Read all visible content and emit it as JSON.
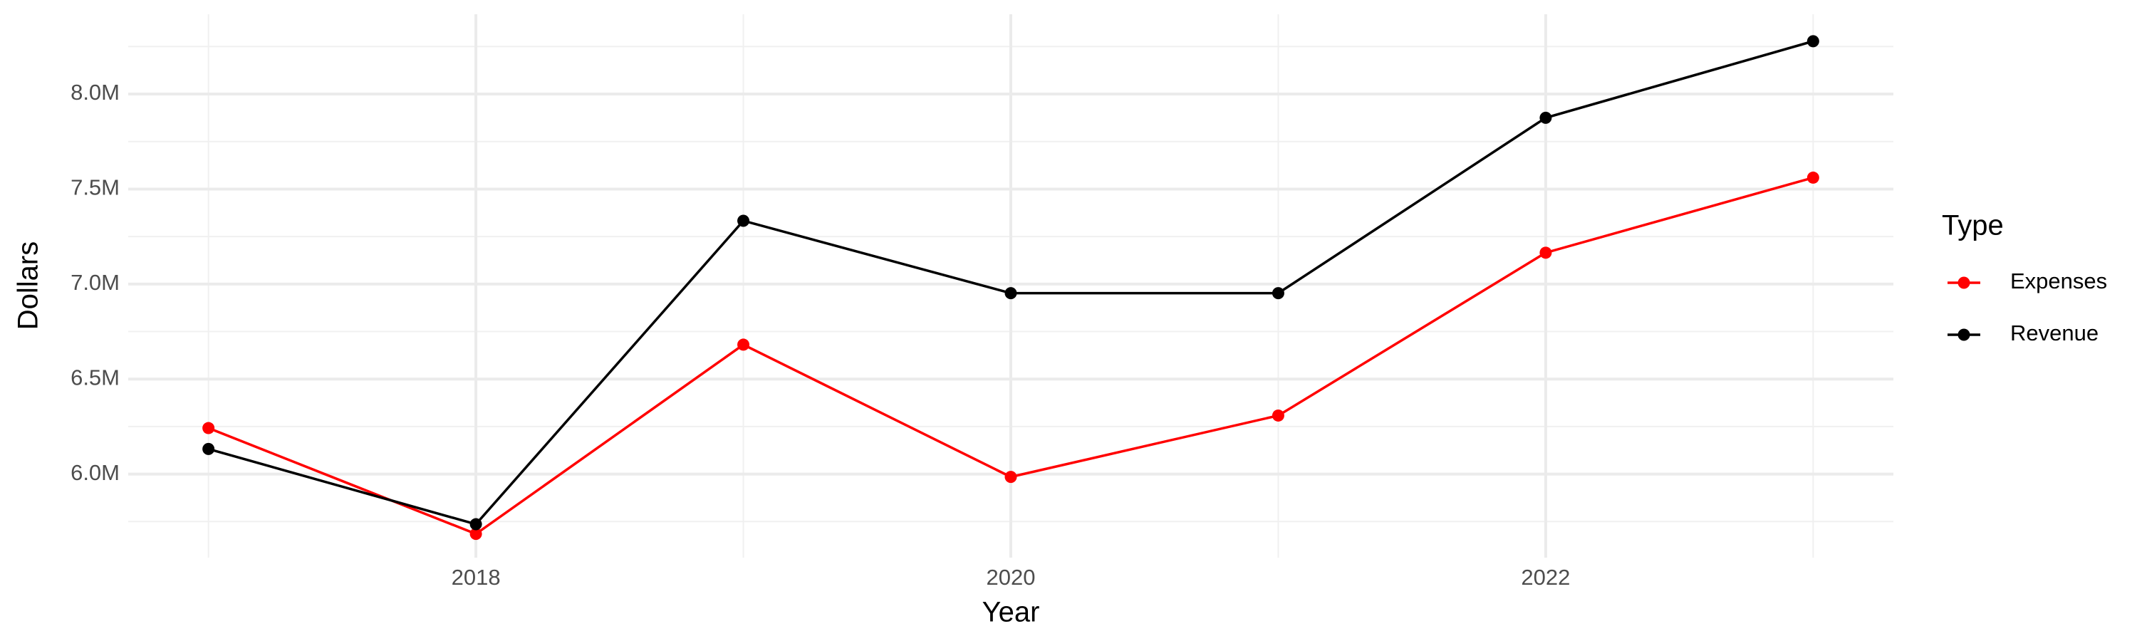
{
  "chart_data": {
    "type": "line",
    "x_label": "Year",
    "y_label": "Dollars",
    "legend_title": "Type",
    "legend_position": "right",
    "grid": true,
    "x": [
      2017,
      2018,
      2019,
      2020,
      2021,
      2022,
      2023
    ],
    "xlim": [
      2016.7,
      2023.3
    ],
    "xticks": [
      2018,
      2020,
      2022
    ],
    "ylim": [
      5560000,
      8420000
    ],
    "yticks": [
      {
        "value": 6000000,
        "label": "6.0M"
      },
      {
        "value": 6500000,
        "label": "6.5M"
      },
      {
        "value": 7000000,
        "label": "7.0M"
      },
      {
        "value": 7500000,
        "label": "7.5M"
      },
      {
        "value": 8000000,
        "label": "8.0M"
      }
    ],
    "series": [
      {
        "name": "Expenses",
        "color": "#ff0000",
        "values": [
          6242000,
          5685000,
          6681000,
          5985000,
          6308000,
          7165000,
          7560000
        ]
      },
      {
        "name": "Revenue",
        "color": "#000000",
        "values": [
          6132000,
          5736000,
          7333000,
          6952000,
          6952000,
          7875000,
          8278000
        ]
      }
    ]
  }
}
